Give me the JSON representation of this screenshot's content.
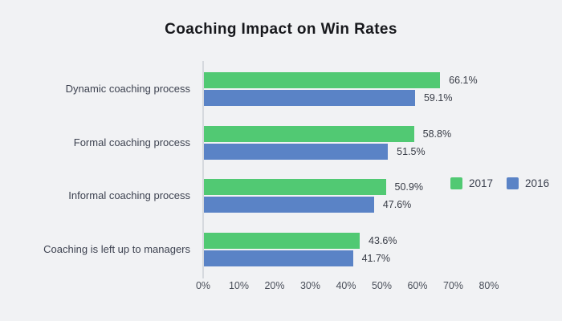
{
  "title": "Coaching Impact on Win Rates",
  "colors": {
    "background": "#f1f2f4",
    "axis_line": "#d6d9de",
    "series_2017_green": "#51c973",
    "series_2016_blue": "#5a83c6",
    "title_text": "#17181c",
    "label_text": "#3d4250",
    "value_text": "#383c46",
    "tick_text": "#4a4f5a"
  },
  "chart_data": {
    "type": "bar",
    "orientation": "horizontal",
    "title": "Coaching Impact on Win Rates",
    "categories": [
      "Dynamic coaching process",
      "Formal coaching process",
      "Informal coaching process",
      "Coaching is left up to managers"
    ],
    "series": [
      {
        "name": "2017",
        "color": "#51c973",
        "values": [
          66.1,
          58.8,
          50.9,
          43.6
        ],
        "value_labels": [
          "66.1%",
          "58.8%",
          "50.9%",
          "43.6%"
        ]
      },
      {
        "name": "2016",
        "color": "#5a83c6",
        "values": [
          59.1,
          51.5,
          47.6,
          41.7
        ],
        "value_labels": [
          "59.1%",
          "51.5%",
          "47.6%",
          "41.7%"
        ]
      }
    ],
    "xlabel": "",
    "ylabel": "",
    "xlim": [
      0,
      80
    ],
    "x_ticks": [
      "0%",
      "10%",
      "20%",
      "30%",
      "40%",
      "50%",
      "60%",
      "70%",
      "80%"
    ],
    "grid": false,
    "legend": {
      "position": "right-middle",
      "entries": [
        "2017",
        "2016"
      ]
    }
  }
}
